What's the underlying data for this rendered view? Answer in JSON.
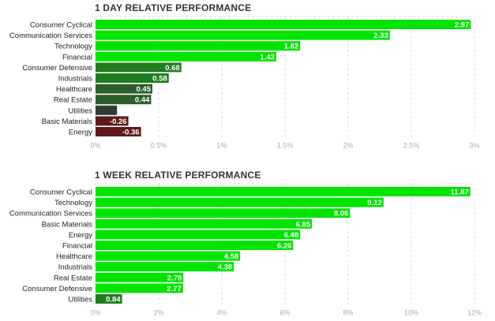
{
  "chart_data": [
    {
      "type": "bar",
      "orientation": "horizontal",
      "title": "1 DAY RELATIVE PERFORMANCE",
      "categories": [
        "Consumer Cyclical",
        "Communication Services",
        "Technology",
        "Financial",
        "Consumer Defensive",
        "Industrials",
        "Healthcare",
        "Real Estate",
        "Utilities",
        "Basic Materials",
        "Energy"
      ],
      "values": [
        2.97,
        2.33,
        1.62,
        1.43,
        0.68,
        0.58,
        0.45,
        0.44,
        0.17,
        -0.26,
        -0.36
      ],
      "value_labels": [
        "2.97",
        "2.33",
        "1.62",
        "1.43",
        "0.68",
        "0.58",
        "0.45",
        "0.44",
        "0.17",
        "-0.26",
        "-0.36"
      ],
      "colors": [
        "#00e400",
        "#00e400",
        "#00e400",
        "#00e400",
        "#1f7d1f",
        "#1f7d1f",
        "#2b5e2b",
        "#2b5e2b",
        "#2f3f2f",
        "#5e1a1a",
        "#5e1a1a"
      ],
      "label_colors": [
        "#ffffff",
        "#ffffff",
        "#ffffff",
        "#ffffff",
        "#ffffff",
        "#ffffff",
        "#ffffff",
        "#ffffff",
        "#333333",
        "#ffffff",
        "#ffffff"
      ],
      "xlim": [
        -0.5,
        3
      ],
      "ticks": [
        0,
        0.5,
        1,
        1.5,
        2,
        2.5,
        3
      ],
      "tick_labels": [
        "0%",
        "0.5%",
        "1%",
        "1.5%",
        "2%",
        "2.5%",
        "3%"
      ],
      "grid": true
    },
    {
      "type": "bar",
      "orientation": "horizontal",
      "title": "1 WEEK RELATIVE PERFORMANCE",
      "categories": [
        "Consumer Cyclical",
        "Technology",
        "Communication Services",
        "Basic Materials",
        "Energy",
        "Financial",
        "Healthcare",
        "Industrials",
        "Real Estate",
        "Consumer Defensive",
        "Utilities"
      ],
      "values": [
        11.87,
        9.12,
        8.06,
        6.85,
        6.48,
        6.26,
        4.58,
        4.38,
        2.78,
        2.77,
        0.84
      ],
      "value_labels": [
        "11.87",
        "9.12",
        "8.06",
        "6.85",
        "6.48",
        "6.26",
        "4.58",
        "4.38",
        "2.78",
        "2.77",
        "0.84"
      ],
      "colors": [
        "#00e400",
        "#00e400",
        "#00e400",
        "#00e400",
        "#00e400",
        "#00e400",
        "#00e400",
        "#00e400",
        "#00e400",
        "#00e400",
        "#1f7d1f"
      ],
      "label_colors": [
        "#ffffff",
        "#ffffff",
        "#ffffff",
        "#ffffff",
        "#ffffff",
        "#ffffff",
        "#ffffff",
        "#ffffff",
        "#ffffff",
        "#ffffff",
        "#ffffff"
      ],
      "xlim": [
        0,
        12
      ],
      "ticks": [
        0,
        2,
        4,
        6,
        8,
        10,
        12
      ],
      "tick_labels": [
        "0%",
        "2%",
        "4%",
        "6%",
        "8%",
        "10%",
        "12%"
      ],
      "grid": true
    }
  ]
}
